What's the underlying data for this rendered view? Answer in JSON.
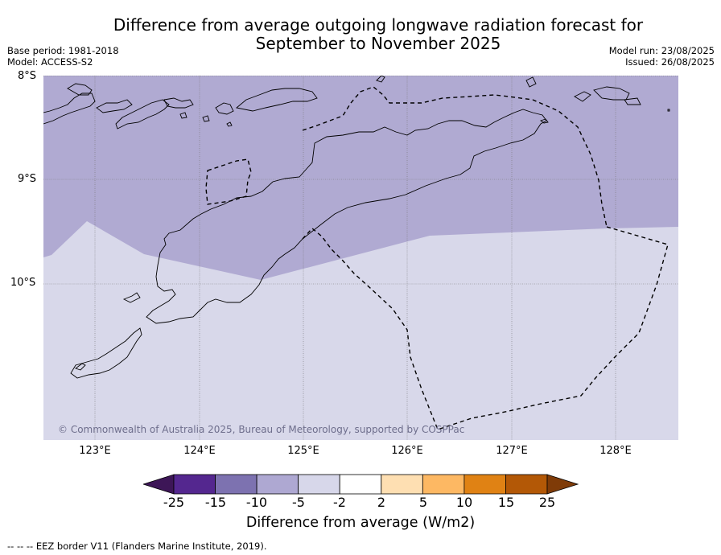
{
  "title_line1": "Difference from average outgoing longwave radiation forecast for",
  "title_line2": "September to November 2025",
  "meta": {
    "base_period": "Base period: 1981-2018",
    "model": "Model: ACCESS-S2",
    "model_run": "Model run: 23/08/2025",
    "issued": "Issued: 26/08/2025"
  },
  "lat_ticks": [
    "8°S",
    "9°S",
    "10°S"
  ],
  "lon_ticks": [
    "123°E",
    "124°E",
    "125°E",
    "126°E",
    "127°E",
    "128°E"
  ],
  "copyright": "© Commonwealth of Australia 2025, Bureau of Meteorology, supported by COSPPac",
  "colorbar": {
    "ticks": [
      "-25",
      "-15",
      "-10",
      "-5",
      "-2",
      "2",
      "5",
      "10",
      "15",
      "25"
    ],
    "colors": [
      "#3d1657",
      "#54278f",
      "#7d72b0",
      "#aea8d2",
      "#d7d7ea",
      "#ffffff",
      "#fedfb2",
      "#fdb863",
      "#e08214",
      "#b35806",
      "#7f3b08"
    ],
    "label": "Difference from average (W/m2)"
  },
  "legend_note": "--  --  -- EEZ border V11 (Flanders Marine Institute, 2019).",
  "map": {
    "region_colors": {
      "category_minus10_to_minus5": "#b0aad2",
      "category_minus5_to_minus2": "#d8d8ea"
    },
    "eez_style": "dashed"
  }
}
